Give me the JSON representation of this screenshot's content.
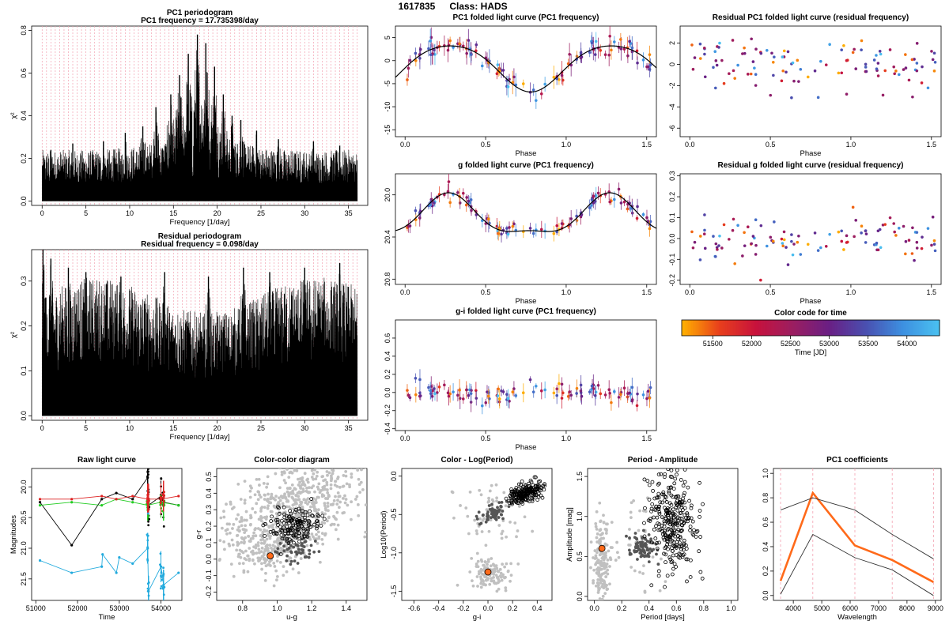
{
  "page": {
    "object_id": "1617835",
    "class_label": "Class: HADS"
  },
  "colors": {
    "time_ramp": [
      "#ffb000",
      "#e8401c",
      "#c8123c",
      "#9c1e60",
      "#6a1f84",
      "#4a4fb0",
      "#3d8fe0",
      "#4ac0f0"
    ],
    "periodogram": "#000000",
    "harmonic_lines": "#f2a0b0",
    "fit_curve": "#000000",
    "highlight_point": "#ff6a1a",
    "catalog_points": "#c0c0c0",
    "same_class_points": "#000000",
    "neighbor_points": "#555555"
  },
  "chart_data": [
    {
      "id": "pc1_periodogram",
      "type": "line",
      "title": "PC1 periodogram",
      "subtitle": "PC1 frequency = 17.735398/day",
      "xlabel": "Frequency [1/day]",
      "ylabel": "χ²",
      "xlim": [
        -1.2,
        37.2
      ],
      "ylim": [
        -0.02,
        0.82
      ],
      "xticks": [
        "0",
        "5",
        "10",
        "15",
        "20",
        "25",
        "30",
        "35"
      ],
      "yticks": [
        "0.0",
        "0.2",
        "0.4",
        "0.6",
        "0.8"
      ],
      "harmonic_spacing": 0.5,
      "peaks": [
        {
          "x": 1.0,
          "y": 0.24
        },
        {
          "x": 3.5,
          "y": 0.27
        },
        {
          "x": 7.0,
          "y": 0.28
        },
        {
          "x": 9.5,
          "y": 0.32
        },
        {
          "x": 11.5,
          "y": 0.35
        },
        {
          "x": 13.0,
          "y": 0.44
        },
        {
          "x": 14.7,
          "y": 0.5
        },
        {
          "x": 15.7,
          "y": 0.59
        },
        {
          "x": 16.7,
          "y": 0.69
        },
        {
          "x": 17.74,
          "y": 0.78
        },
        {
          "x": 18.7,
          "y": 0.74
        },
        {
          "x": 19.7,
          "y": 0.63
        },
        {
          "x": 20.7,
          "y": 0.5
        },
        {
          "x": 21.7,
          "y": 0.4
        },
        {
          "x": 22.7,
          "y": 0.38
        },
        {
          "x": 24.5,
          "y": 0.33
        },
        {
          "x": 27.0,
          "y": 0.29
        },
        {
          "x": 31.0,
          "y": 0.28
        },
        {
          "x": 34.0,
          "y": 0.26
        }
      ]
    },
    {
      "id": "residual_periodogram",
      "type": "line",
      "title": "Residual periodogram",
      "subtitle": "Residual frequency = 0.098/day",
      "xlabel": "Frequency [1/day]",
      "ylabel": "χ²",
      "xlim": [
        -1.2,
        37.2
      ],
      "ylim": [
        -0.01,
        0.37
      ],
      "xticks": [
        "0",
        "5",
        "10",
        "15",
        "20",
        "25",
        "30",
        "35"
      ],
      "yticks": [
        "0.0",
        "0.1",
        "0.2",
        "0.3"
      ],
      "harmonic_spacing": 0.5,
      "peaks": [
        {
          "x": 0.1,
          "y": 0.37
        },
        {
          "x": 1.0,
          "y": 0.35
        },
        {
          "x": 3.0,
          "y": 0.33
        },
        {
          "x": 5.0,
          "y": 0.32
        },
        {
          "x": 9.0,
          "y": 0.31
        },
        {
          "x": 14.0,
          "y": 0.32
        },
        {
          "x": 19.0,
          "y": 0.31
        },
        {
          "x": 23.0,
          "y": 0.33
        },
        {
          "x": 26.0,
          "y": 0.32
        },
        {
          "x": 30.0,
          "y": 0.33
        },
        {
          "x": 34.0,
          "y": 0.34
        }
      ]
    },
    {
      "id": "pc1_folded",
      "type": "scatter",
      "title": "PC1 folded light curve (PC1 frequency)",
      "xlabel": "Phase",
      "ylabel": "",
      "xlim": [
        -0.06,
        1.56
      ],
      "ylim": [
        -16.5,
        7.5
      ],
      "xticks": [
        "0.0",
        "0.5",
        "1.0",
        "1.5"
      ],
      "yticks": [
        "-15",
        "-10",
        "-5",
        "0",
        "5"
      ],
      "fit": {
        "type": "pc1_lightcurve_model",
        "mean": -1.2,
        "amplitude": 5.0
      }
    },
    {
      "id": "residual_pc1_folded",
      "type": "scatter",
      "title": "Residual PC1 folded light curve (residual frequency)",
      "xlabel": "Phase",
      "ylabel": "",
      "xlim": [
        -0.06,
        1.56
      ],
      "ylim": [
        -6.8,
        3.6
      ],
      "xticks": [
        "0.0",
        "0.5",
        "1.0",
        "1.5"
      ],
      "yticks": [
        "-6",
        "-4",
        "-2",
        "0",
        "2"
      ]
    },
    {
      "id": "g_folded",
      "type": "scatter",
      "title": "g folded light curve (PC1 frequency)",
      "xlabel": "Phase",
      "ylabel": "",
      "xlim": [
        -0.06,
        1.56
      ],
      "ylim": [
        20.85,
        19.8
      ],
      "xticks": [
        "0.0",
        "0.5",
        "1.0",
        "1.5"
      ],
      "yticks": [
        "20.0",
        "20.4",
        "20.8"
      ],
      "fit": {
        "type": "g_lightcurve_model",
        "mean": 20.22,
        "amplitude": 0.18
      }
    },
    {
      "id": "residual_g_folded",
      "type": "scatter",
      "title": "Residual g folded light curve (residual frequency)",
      "xlabel": "Phase",
      "ylabel": "",
      "xlim": [
        -0.06,
        1.56
      ],
      "ylim": [
        -0.22,
        0.31
      ],
      "xticks": [
        "0.0",
        "0.5",
        "1.0",
        "1.5"
      ],
      "yticks": [
        "-0.2",
        "-0.1",
        "0.0",
        "0.1",
        "0.2",
        "0.3"
      ]
    },
    {
      "id": "gi_folded",
      "type": "scatter",
      "title": "g-i folded light curve (PC1 frequency)",
      "xlabel": "Phase",
      "ylabel": "",
      "xlim": [
        -0.06,
        1.56
      ],
      "ylim": [
        -0.42,
        0.8
      ],
      "xticks": [
        "0.0",
        "0.5",
        "1.0",
        "1.5"
      ],
      "yticks": [
        "-0.4",
        "-0.2",
        "0.0",
        "0.2",
        "0.4",
        "0.6"
      ]
    },
    {
      "id": "color_key",
      "type": "heatmap",
      "title": "Color code for time",
      "xlabel": "Time [JD]",
      "range": [
        51100,
        54420
      ],
      "xticks": [
        "51500",
        "52000",
        "52500",
        "53000",
        "53500",
        "54000"
      ]
    },
    {
      "id": "raw_light_curve",
      "type": "line",
      "title": "Raw light curve",
      "xlabel": "Time",
      "ylabel": "Magnitudes",
      "xlim": [
        50900,
        54500
      ],
      "ylim": [
        21.85,
        19.7
      ],
      "xticks": [
        "51000",
        "52000",
        "53000",
        "54000"
      ],
      "yticks": [
        "20.0",
        "20.5",
        "21.0",
        "21.5"
      ],
      "series": [
        {
          "color": "#000000",
          "x": [
            51100,
            51860,
            52580,
            52930,
            53320,
            53680,
            53700,
            54000,
            54060,
            54420
          ],
          "values": [
            20.25,
            20.95,
            20.2,
            20.1,
            20.2,
            19.85,
            20.3,
            20.15,
            20.25,
            20.3
          ]
        },
        {
          "color": "#22cc22",
          "x": [
            51100,
            51860,
            52580,
            52930,
            53320,
            53680,
            54000,
            54420
          ],
          "values": [
            20.3,
            20.25,
            20.3,
            20.2,
            20.25,
            20.3,
            20.25,
            20.3
          ]
        },
        {
          "color": "#dd2222",
          "x": [
            51100,
            51860,
            52580,
            52930,
            53320,
            53680,
            54000,
            54420
          ],
          "values": [
            20.2,
            20.2,
            20.15,
            20.2,
            20.15,
            20.2,
            20.2,
            20.15
          ]
        },
        {
          "color": "#22aadd",
          "x": [
            51100,
            51860,
            52580,
            52600,
            52930,
            53000,
            53320,
            53680,
            53700,
            54000,
            54060,
            54420
          ],
          "values": [
            21.2,
            21.4,
            21.3,
            21.1,
            21.4,
            21.15,
            21.25,
            21.0,
            21.7,
            21.3,
            21.6,
            21.4
          ]
        }
      ]
    },
    {
      "id": "color_color",
      "type": "scatter",
      "title": "Color-color diagram",
      "xlabel": "u-g",
      "ylabel": "g-r",
      "xlim": [
        0.65,
        1.52
      ],
      "ylim": [
        -0.25,
        0.55
      ],
      "xticks": [
        "0.8",
        "1.0",
        "1.2",
        "1.4"
      ],
      "yticks": [
        "-0.2",
        "-0.1",
        "0.0",
        "0.1",
        "0.2",
        "0.3",
        "0.4",
        "0.5"
      ],
      "target": {
        "x": 0.96,
        "y": 0.02
      },
      "clusters": [
        {
          "role": "catalog",
          "cx": 1.1,
          "cy": 0.3,
          "sx": 0.22,
          "sy": 0.14,
          "n": 700,
          "tilt": 0.35
        },
        {
          "role": "catalog",
          "cx": 0.95,
          "cy": 0.05,
          "sx": 0.08,
          "sy": 0.07,
          "n": 120,
          "tilt": 0
        },
        {
          "role": "same_class",
          "cx": 1.1,
          "cy": 0.2,
          "sx": 0.07,
          "sy": 0.05,
          "n": 140,
          "tilt": 0
        },
        {
          "role": "neighbor",
          "cx": 1.12,
          "cy": 0.07,
          "sx": 0.06,
          "sy": 0.05,
          "n": 60,
          "tilt": 0
        }
      ]
    },
    {
      "id": "color_logperiod",
      "type": "scatter",
      "title": "Color - Log(Period)",
      "xlabel": "g-i",
      "ylabel": "Log10(Period)",
      "xlim": [
        -0.7,
        0.52
      ],
      "ylim": [
        -1.62,
        0.1
      ],
      "xticks": [
        "-0.6",
        "-0.4",
        "-0.2",
        "0.0",
        "0.2",
        "0.4"
      ],
      "yticks": [
        "-1.5",
        "-1.0",
        "-0.5",
        "0.0"
      ],
      "target": {
        "x": 0.0,
        "y": -1.25
      },
      "clusters": [
        {
          "role": "catalog",
          "cx": 0.0,
          "cy": -1.25,
          "sx": 0.08,
          "sy": 0.1,
          "n": 120,
          "tilt": 0
        },
        {
          "role": "catalog",
          "cx": 0.05,
          "cy": -0.5,
          "sx": 0.15,
          "sy": 0.25,
          "n": 60,
          "tilt": 0
        },
        {
          "role": "neighbor",
          "cx": 0.05,
          "cy": -0.47,
          "sx": 0.06,
          "sy": 0.06,
          "n": 60,
          "tilt": 0.5
        },
        {
          "role": "same_class",
          "cx": 0.3,
          "cy": -0.22,
          "sx": 0.07,
          "sy": 0.06,
          "n": 200,
          "tilt": 0.5
        }
      ]
    },
    {
      "id": "period_amplitude",
      "type": "scatter",
      "title": "Period - Amplitude",
      "xlabel": "Period [days]",
      "ylabel": "Amplitude [mag]",
      "xlim": [
        -0.05,
        1.05
      ],
      "ylim": [
        -0.05,
        1.6
      ],
      "xticks": [
        "0.0",
        "0.2",
        "0.4",
        "0.6",
        "0.8",
        "1.0"
      ],
      "yticks": [
        "0.0",
        "0.5",
        "1.0",
        "1.5"
      ],
      "target": {
        "x": 0.055,
        "y": 0.6
      },
      "clusters": [
        {
          "role": "catalog",
          "cx": 0.06,
          "cy": 0.45,
          "sx": 0.03,
          "sy": 0.25,
          "n": 160,
          "tilt": 0
        },
        {
          "role": "catalog",
          "cx": 0.25,
          "cy": 0.7,
          "sx": 0.12,
          "sy": 0.3,
          "n": 50,
          "tilt": 0
        },
        {
          "role": "neighbor",
          "cx": 0.35,
          "cy": 0.6,
          "sx": 0.05,
          "sy": 0.1,
          "n": 80,
          "tilt": 0
        },
        {
          "role": "same_class",
          "cx": 0.57,
          "cy": 0.9,
          "sx": 0.08,
          "sy": 0.3,
          "n": 300,
          "tilt": -0.6
        }
      ]
    },
    {
      "id": "pc1_coefficients",
      "type": "line",
      "title": "PC1 coefficients",
      "xlabel": "Wavelength",
      "ylabel": "",
      "xlim": [
        3300,
        9200
      ],
      "ylim": [
        -0.04,
        1.04
      ],
      "xticks": [
        "4000",
        "5000",
        "6000",
        "7000",
        "8000",
        "9000"
      ],
      "yticks": [
        "0.0",
        "0.2",
        "0.4",
        "0.6",
        "0.8",
        "1.0"
      ],
      "band_wavelengths": [
        3551,
        4686,
        6166,
        7480,
        8932
      ],
      "series": [
        {
          "role": "coefficients",
          "x": [
            3551,
            4686,
            6166,
            7480,
            8932
          ],
          "values": [
            0.12,
            0.84,
            0.41,
            0.29,
            0.11
          ]
        },
        {
          "role": "upper_envelope",
          "x": [
            3551,
            4686,
            6166,
            7480,
            8932
          ],
          "values": [
            0.7,
            0.8,
            0.7,
            0.5,
            0.3
          ]
        },
        {
          "role": "lower_envelope",
          "x": [
            3551,
            4686,
            6166,
            7480,
            8932
          ],
          "values": [
            0.01,
            0.5,
            0.31,
            0.21,
            0.0
          ]
        }
      ]
    }
  ]
}
